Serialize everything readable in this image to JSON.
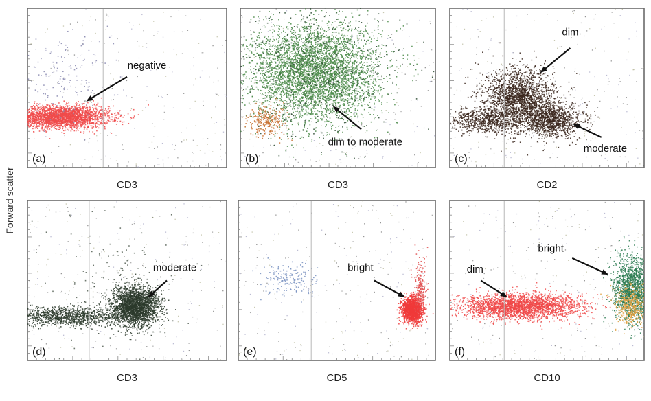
{
  "figure": {
    "ylabel": "Forward scatter"
  },
  "chart_data": [
    {
      "type": "scatter",
      "panel_label": "(a)",
      "xlabel": "CD3",
      "xlim": [
        0,
        1
      ],
      "ylim": [
        0,
        1
      ],
      "gate_x": 0.38,
      "populations": [
        {
          "name": "",
          "color": "#f04a4a",
          "center": [
            0.17,
            0.32
          ],
          "spread": [
            0.12,
            0.035
          ],
          "n": 2600
        },
        {
          "name": "",
          "color": "#8a8ab0",
          "center": [
            0.18,
            0.55
          ],
          "spread": [
            0.12,
            0.12
          ],
          "n": 140
        }
      ],
      "annotations": [
        {
          "text": "negative",
          "text_at": [
            0.6,
            0.62
          ],
          "arrow_from": [
            0.5,
            0.57
          ],
          "arrow_to": [
            0.3,
            0.42
          ]
        }
      ]
    },
    {
      "type": "scatter",
      "panel_label": "(b)",
      "xlabel": "CD3",
      "xlim": [
        0,
        1
      ],
      "ylim": [
        0,
        1
      ],
      "gate_x": 0.28,
      "populations": [
        {
          "name": "",
          "color": "#4a8a48",
          "center": [
            0.38,
            0.6
          ],
          "spread": [
            0.16,
            0.15
          ],
          "n": 4200
        },
        {
          "name": "",
          "color": "#c87030",
          "center": [
            0.14,
            0.3
          ],
          "spread": [
            0.05,
            0.05
          ],
          "n": 260
        },
        {
          "name": "",
          "color": "#2a4a30",
          "center": [
            0.4,
            0.62
          ],
          "spread": [
            0.22,
            0.22
          ],
          "n": 500
        }
      ],
      "annotations": [
        {
          "text": "dim to moderate",
          "text_at": [
            0.64,
            0.14
          ],
          "arrow_from": [
            0.62,
            0.24
          ],
          "arrow_to": [
            0.48,
            0.38
          ]
        }
      ]
    },
    {
      "type": "scatter",
      "panel_label": "(c)",
      "xlabel": "CD2",
      "xlim": [
        0,
        1
      ],
      "ylim": [
        0,
        1
      ],
      "gate_x": 0.28,
      "populations": [
        {
          "name": "",
          "color": "#3a261c",
          "center": [
            0.36,
            0.44
          ],
          "spread": [
            0.09,
            0.09
          ],
          "n": 1900
        },
        {
          "name": "",
          "color": "#3a261c",
          "center": [
            0.52,
            0.3
          ],
          "spread": [
            0.08,
            0.05
          ],
          "n": 1100
        },
        {
          "name": "",
          "color": "#3a261c",
          "center": [
            0.18,
            0.3
          ],
          "spread": [
            0.1,
            0.04
          ],
          "n": 700
        }
      ],
      "annotations": [
        {
          "text": "dim",
          "text_at": [
            0.62,
            0.83
          ],
          "arrow_from": [
            0.62,
            0.75
          ],
          "arrow_to": [
            0.47,
            0.6
          ]
        },
        {
          "text": "moderate",
          "text_at": [
            0.8,
            0.1
          ],
          "arrow_from": [
            0.78,
            0.19
          ],
          "arrow_to": [
            0.64,
            0.27
          ]
        }
      ]
    },
    {
      "type": "scatter",
      "panel_label": "(d)",
      "xlabel": "CD3",
      "xlim": [
        0,
        1
      ],
      "ylim": [
        0,
        1
      ],
      "gate_x": 0.31,
      "populations": [
        {
          "name": "",
          "color": "#2c3a2c",
          "center": [
            0.54,
            0.34
          ],
          "spread": [
            0.06,
            0.06
          ],
          "n": 2300
        },
        {
          "name": "",
          "color": "#2c3a2c",
          "center": [
            0.2,
            0.28
          ],
          "spread": [
            0.15,
            0.03
          ],
          "n": 1100
        },
        {
          "name": "",
          "color": "#556055",
          "center": [
            0.48,
            0.5
          ],
          "spread": [
            0.18,
            0.2
          ],
          "n": 160
        }
      ],
      "annotations": [
        {
          "text": "moderate",
          "text_at": [
            0.74,
            0.56
          ],
          "arrow_from": [
            0.7,
            0.5
          ],
          "arrow_to": [
            0.61,
            0.4
          ]
        }
      ]
    },
    {
      "type": "scatter",
      "panel_label": "(e)",
      "xlabel": "CD5",
      "xlim": [
        0,
        1
      ],
      "ylim": [
        0,
        1
      ],
      "gate_x": 0.37,
      "populations": [
        {
          "name": "",
          "color": "#f03a3a",
          "center": [
            0.88,
            0.32
          ],
          "spread": [
            0.025,
            0.04
          ],
          "n": 1600
        },
        {
          "name": "",
          "color": "#e05050",
          "center": [
            0.92,
            0.46
          ],
          "spread": [
            0.015,
            0.1
          ],
          "n": 200
        },
        {
          "name": "",
          "color": "#7890c0",
          "center": [
            0.26,
            0.51
          ],
          "spread": [
            0.07,
            0.05
          ],
          "n": 160
        }
      ],
      "annotations": [
        {
          "text": "bright",
          "text_at": [
            0.62,
            0.56
          ],
          "arrow_from": [
            0.69,
            0.5
          ],
          "arrow_to": [
            0.84,
            0.4
          ]
        }
      ]
    },
    {
      "type": "scatter",
      "panel_label": "(f)",
      "xlabel": "CD10",
      "xlim": [
        0,
        1
      ],
      "ylim": [
        0,
        1
      ],
      "gate_x": 0.28,
      "populations": [
        {
          "name": "",
          "color": "#f04848",
          "center": [
            0.36,
            0.34
          ],
          "spread": [
            0.15,
            0.04
          ],
          "n": 2500
        },
        {
          "name": "",
          "color": "#2a7a50",
          "center": [
            0.94,
            0.45
          ],
          "spread": [
            0.05,
            0.1
          ],
          "n": 1400
        },
        {
          "name": "",
          "color": "#e0a040",
          "center": [
            0.93,
            0.35
          ],
          "spread": [
            0.04,
            0.06
          ],
          "n": 400
        }
      ],
      "annotations": [
        {
          "text": "dim",
          "text_at": [
            0.13,
            0.55
          ],
          "arrow_from": [
            0.16,
            0.5
          ],
          "arrow_to": [
            0.29,
            0.4
          ]
        },
        {
          "text": "bright",
          "text_at": [
            0.52,
            0.68
          ],
          "arrow_from": [
            0.63,
            0.64
          ],
          "arrow_to": [
            0.81,
            0.54
          ]
        }
      ]
    }
  ]
}
